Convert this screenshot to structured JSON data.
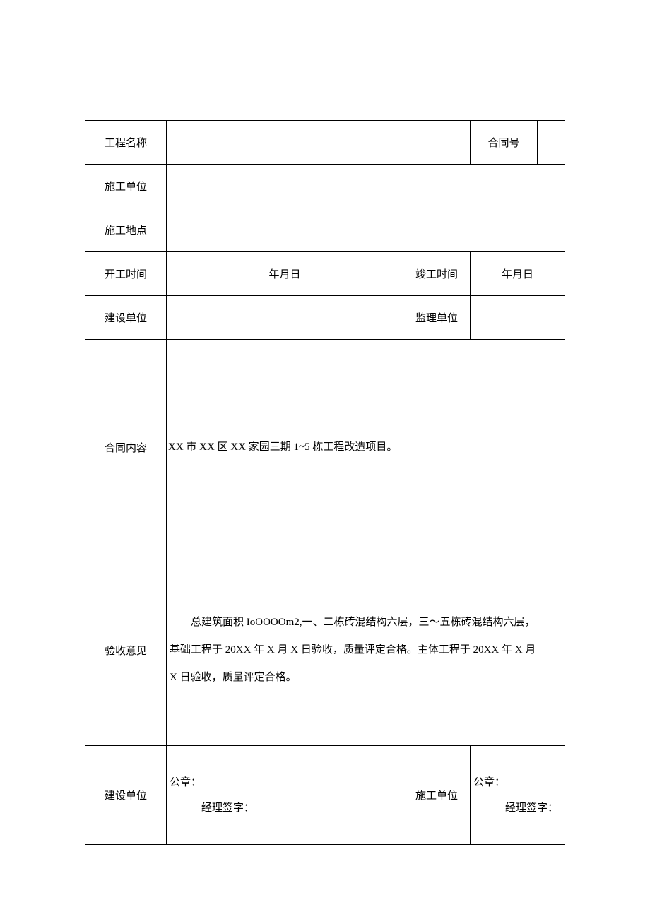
{
  "table": {
    "labels": {
      "project_name": "工程名称",
      "contract_no": "合同号",
      "construction_unit": "施工单位",
      "construction_site": "施工地点",
      "start_time": "开工时间",
      "completion_time": "竣工时间",
      "dev_unit": "建设单位",
      "supervision_unit": "监理单位",
      "contract_content": "合同内容",
      "acceptance_opinion": "验收意见",
      "dev_unit_sig": "建设单位",
      "construction_unit_sig": "施工单位"
    },
    "values": {
      "project_name": "",
      "contract_no": "",
      "construction_unit": "",
      "construction_site": "",
      "start_date": "年月日",
      "completion_date": "年月日",
      "dev_unit": "",
      "supervision_unit": "",
      "contract_content": "XX 市 XX 区 XX 家园三期 1~5 栋工程改造项目。",
      "acceptance_opinion": "总建筑面积 IoOOOOm2,一、二栋砖混结构六层，三～五栋砖混结构六层，基础工程于 20XX 年 X 月 X 日验收，质量评定合格。主体工程于 20XX 年 X 月 X 日验收，质量评定合格。",
      "seal_label": "公章：",
      "manager_sign_label": "经理签字："
    }
  },
  "style": {
    "border_color": "#000000",
    "background_color": "#ffffff",
    "text_color": "#000000",
    "font_size_pt": 11,
    "font_family": "SimSun"
  }
}
